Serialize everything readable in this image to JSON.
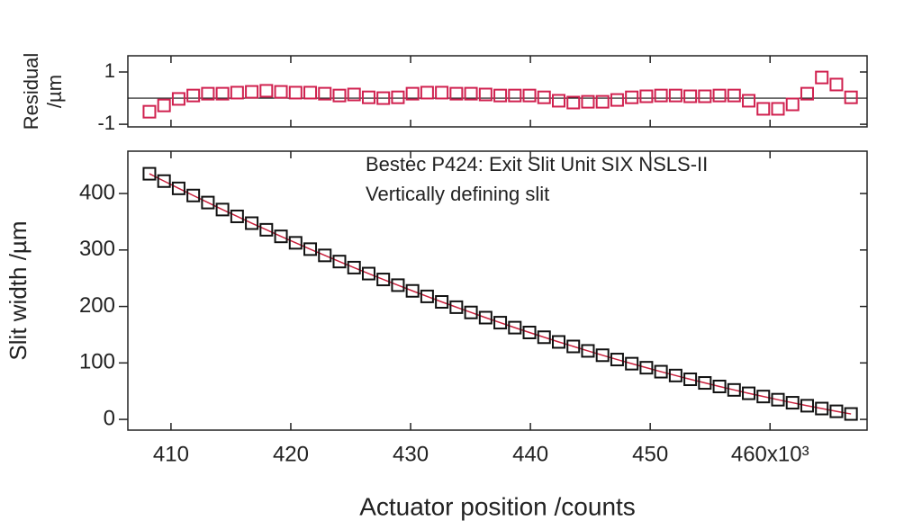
{
  "chart_data": [
    {
      "type": "scatter",
      "ylabel": [
        "Residual",
        "/µm"
      ],
      "x": [
        408.2,
        409.42,
        410.64,
        411.86,
        413.08,
        414.3,
        415.52,
        416.74,
        417.96,
        419.18,
        420.4,
        421.62,
        422.84,
        424.06,
        425.28,
        426.5,
        427.72,
        428.94,
        430.16,
        431.38,
        432.6,
        433.82,
        435.04,
        436.26,
        437.48,
        438.7,
        439.92,
        441.14,
        442.36,
        443.58,
        444.8,
        446.02,
        447.24,
        448.46,
        449.68,
        450.9,
        452.12,
        453.34,
        454.56,
        455.78,
        457,
        458.22,
        459.44,
        460.66,
        461.88,
        463.1,
        464.32,
        465.54,
        466.76
      ],
      "series": [
        {
          "color": "#d0214f",
          "values": [
            -0.52,
            -0.28,
            -0.03,
            0.1,
            0.17,
            0.17,
            0.21,
            0.24,
            0.28,
            0.24,
            0.21,
            0.21,
            0.17,
            0.1,
            0.14,
            0.03,
            0,
            0.03,
            0.17,
            0.21,
            0.21,
            0.17,
            0.17,
            0.14,
            0.1,
            0.1,
            0.1,
            0.03,
            -0.1,
            -0.17,
            -0.14,
            -0.14,
            -0.07,
            0.03,
            0.07,
            0.1,
            0.1,
            0.07,
            0.07,
            0.1,
            0.1,
            -0.1,
            -0.41,
            -0.41,
            -0.24,
            0.17,
            0.79,
            0.52,
            0.03
          ]
        }
      ],
      "xlim": [
        406.4,
        468.1
      ],
      "xticks": [
        410,
        420,
        430,
        440,
        450,
        460
      ],
      "ylim": [
        -1.1,
        1.62
      ],
      "yticks": [
        1,
        -1
      ],
      "hline": 0
    },
    {
      "type": "scatter",
      "ylabel": "Slit width /µm",
      "xlabel": "Actuator position /counts",
      "annotations": [
        "Bestec P424: Exit Slit Unit SIX NSLS-II",
        "Vertically defining slit"
      ],
      "x": [
        408.2,
        409.42,
        410.64,
        411.86,
        413.08,
        414.3,
        415.52,
        416.74,
        417.96,
        419.18,
        420.4,
        421.62,
        422.84,
        424.06,
        425.28,
        426.5,
        427.72,
        428.94,
        430.16,
        431.38,
        432.6,
        433.82,
        435.04,
        436.26,
        437.48,
        438.7,
        439.92,
        441.14,
        442.36,
        443.58,
        444.8,
        446.02,
        447.24,
        448.46,
        449.68,
        450.9,
        452.12,
        453.34,
        454.56,
        455.78,
        457,
        458.22,
        459.44,
        460.66,
        461.88,
        463.1,
        464.32,
        465.54,
        466.76
      ],
      "series": [
        {
          "color": "#111111",
          "fit_color": "#c8203c",
          "values": [
            435,
            422.0,
            409.1,
            396.5,
            384.0,
            371.6,
            359.5,
            347.5,
            335.8,
            324.1,
            312.7,
            301.5,
            290.4,
            279.5,
            268.8,
            258.2,
            247.8,
            237.7,
            227.6,
            217.8,
            208.1,
            198.7,
            189.4,
            180.2,
            171.3,
            162.5,
            153.9,
            145.5,
            137.2,
            129.2,
            121.3,
            113.6,
            106.0,
            98.7,
            91.5,
            84.5,
            77.7,
            71.0,
            64.6,
            58.3,
            52.2,
            46.2,
            40.5,
            34.9,
            29.5,
            24.2,
            19.2,
            14.3,
            9.6
          ]
        }
      ],
      "xlim": [
        406.4,
        468.1
      ],
      "xticks": [
        410,
        420,
        430,
        440,
        450,
        {
          "value": 460,
          "label": "460x10³"
        }
      ],
      "ylim": [
        -19,
        475
      ],
      "yticks": [
        0,
        100,
        200,
        300,
        400
      ]
    }
  ]
}
